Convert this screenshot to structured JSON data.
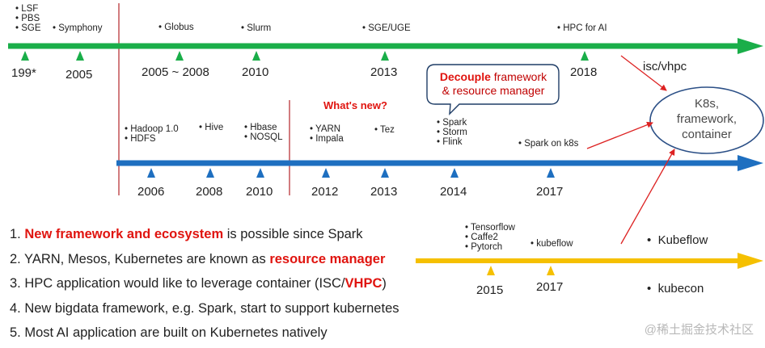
{
  "timeline_top": {
    "items": [
      {
        "lines": [
          "• LSF",
          "• PBS",
          "• SGE"
        ]
      },
      {
        "lines": [
          "• Symphony"
        ]
      },
      {
        "lines": [
          "• Globus"
        ]
      },
      {
        "lines": [
          "• Slurm"
        ]
      },
      {
        "lines": [
          "• SGE/UGE"
        ]
      },
      {
        "lines": [
          "• HPC for AI"
        ]
      }
    ],
    "years": [
      "199*",
      "2005",
      "2005 ~ 2008",
      "2010",
      "2013",
      "2018"
    ],
    "arrow_color": "#1aae49"
  },
  "timeline_middle": {
    "items": [
      {
        "lines": [
          "• Hadoop 1.0",
          "• HDFS"
        ]
      },
      {
        "lines": [
          "• Hive"
        ]
      },
      {
        "lines": [
          "• Hbase",
          "• NOSQL"
        ]
      },
      {
        "lines": [
          "• YARN",
          "• Impala"
        ]
      },
      {
        "lines": [
          "• Tez"
        ]
      },
      {
        "lines": [
          "• Spark",
          "• Storm",
          "• Flink"
        ]
      },
      {
        "lines": [
          "• Spark on k8s"
        ]
      }
    ],
    "years": [
      "2006",
      "2008",
      "2010",
      "2012",
      "2013",
      "2014",
      "2017"
    ],
    "whats_new": "What's new?",
    "arrow_color": "#1e6fc0"
  },
  "timeline_bottom": {
    "items": [
      {
        "lines": [
          "• Tensorflow",
          "• Caffe2",
          "• Pytorch"
        ]
      },
      {
        "lines": [
          "• kubeflow"
        ]
      }
    ],
    "years": [
      "2015",
      "2017"
    ],
    "arrow_color": "#f5c000"
  },
  "callout": {
    "highlight": "Decouple",
    "rest_line1": " framework",
    "line2": "& resource manager"
  },
  "ellipse": {
    "lines": [
      "K8s,",
      "framework,",
      "container"
    ]
  },
  "side_labels": {
    "isc": "isc/vhpc",
    "bullets": [
      "•  Kubeflow",
      "•  kubecon"
    ]
  },
  "notes": [
    {
      "prefix": "1. ",
      "highlight": "New framework and ecosystem",
      "suffix": " is possible since Spark"
    },
    {
      "prefix": "2. YARN, Mesos, Kubernetes are known as ",
      "highlight": "resource manager",
      "suffix": ""
    },
    {
      "prefix": "3. HPC application would like to leverage container (ISC/",
      "highlight": "VHPC",
      "suffix": ")"
    },
    {
      "prefix": "4. New bigdata framework, e.g. Spark, start to support kubernetes",
      "highlight": "",
      "suffix": ""
    },
    {
      "prefix": "5. Most AI application are built on Kubernetes natively",
      "highlight": "",
      "suffix": ""
    }
  ],
  "watermark": "@稀土掘金技术社区",
  "colors": {
    "accent_red": "#e0140f",
    "divider": "#b3262a",
    "callout_border": "#1f3d66",
    "ellipse_border": "#2b4f86"
  }
}
